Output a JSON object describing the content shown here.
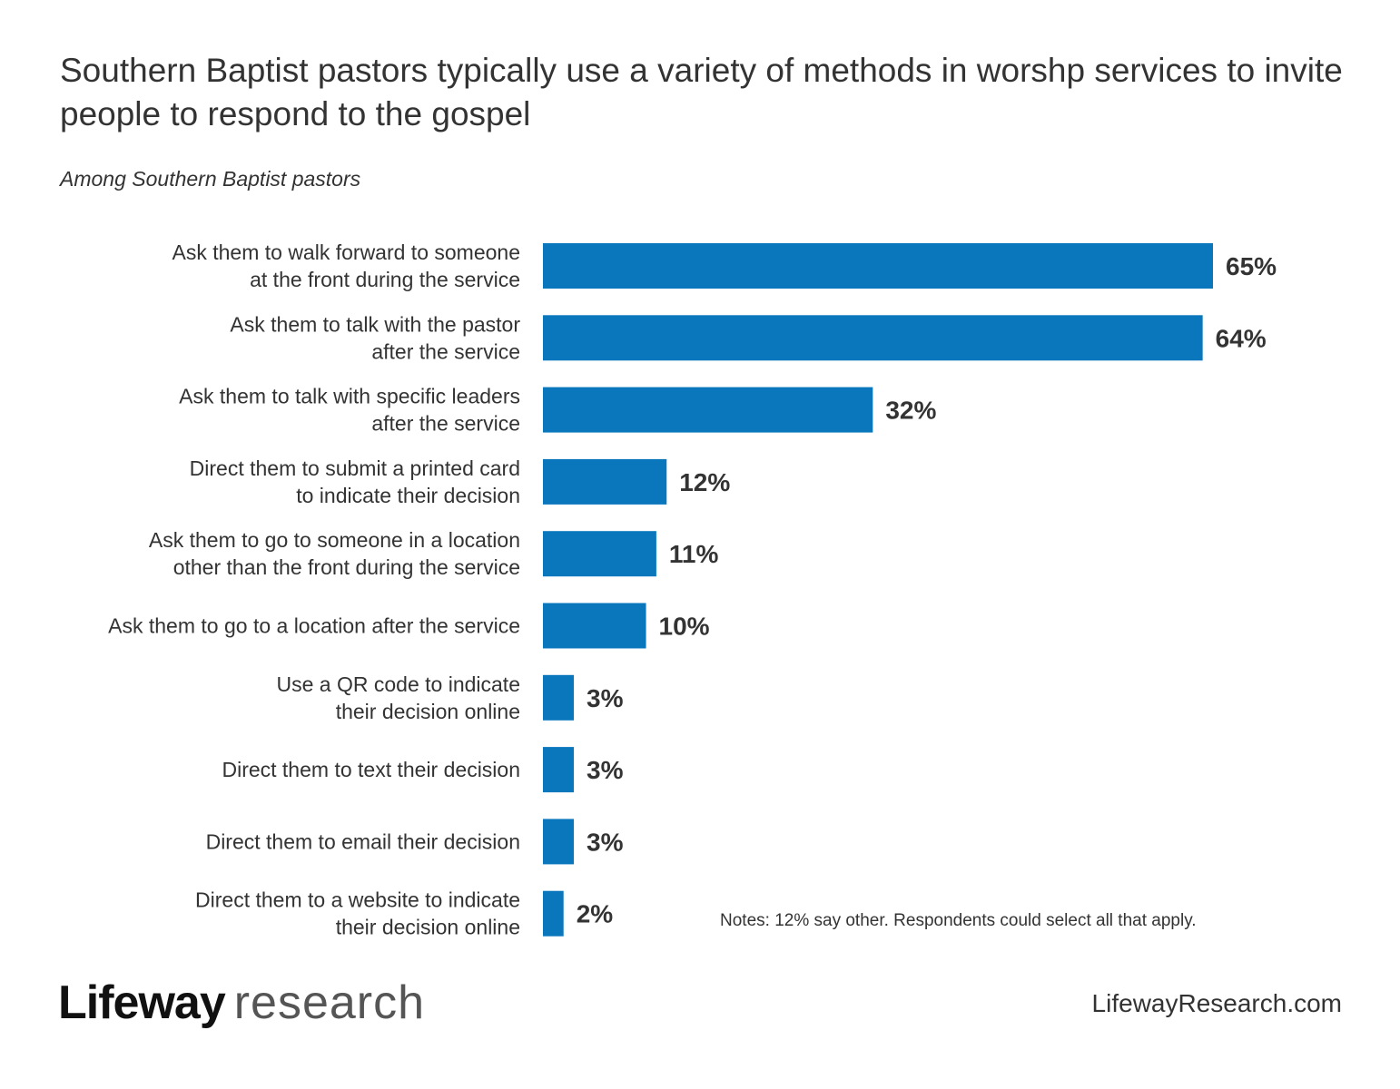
{
  "header": {
    "title": "Southern Baptist pastors typically use a variety of methods in worshp services to invite people to respond to the gospel",
    "subtitle": "Among Southern Baptist pastors"
  },
  "chart_data": {
    "type": "bar",
    "orientation": "horizontal",
    "categories": [
      [
        "Ask them to walk forward to someone",
        "at the front during the service"
      ],
      [
        "Ask them to talk with the pastor",
        "after the service"
      ],
      [
        "Ask them to talk with specific leaders",
        "after the service"
      ],
      [
        "Direct them to submit a printed card",
        "to indicate their decision"
      ],
      [
        "Ask them to go to someone in a location",
        "other than the front during the service"
      ],
      [
        "Ask them to go to a location after the service"
      ],
      [
        "Use a QR code to indicate",
        "their decision online"
      ],
      [
        "Direct them to text their decision"
      ],
      [
        "Direct them to email their decision"
      ],
      [
        "Direct them to a website to indicate",
        "their decision online"
      ]
    ],
    "values": [
      65,
      64,
      32,
      12,
      11,
      10,
      3,
      3,
      3,
      2
    ],
    "value_labels": [
      "65%",
      "64%",
      "32%",
      "12%",
      "11%",
      "10%",
      "3%",
      "3%",
      "3%",
      "2%"
    ],
    "bar_color": "#0a77bd",
    "grid": false
  },
  "notes": "Notes: 12% say other. Respondents could select all that apply.",
  "footer": {
    "logo_brand": "Lifeway",
    "logo_suffix": "research",
    "website": "LifewayResearch.com"
  }
}
